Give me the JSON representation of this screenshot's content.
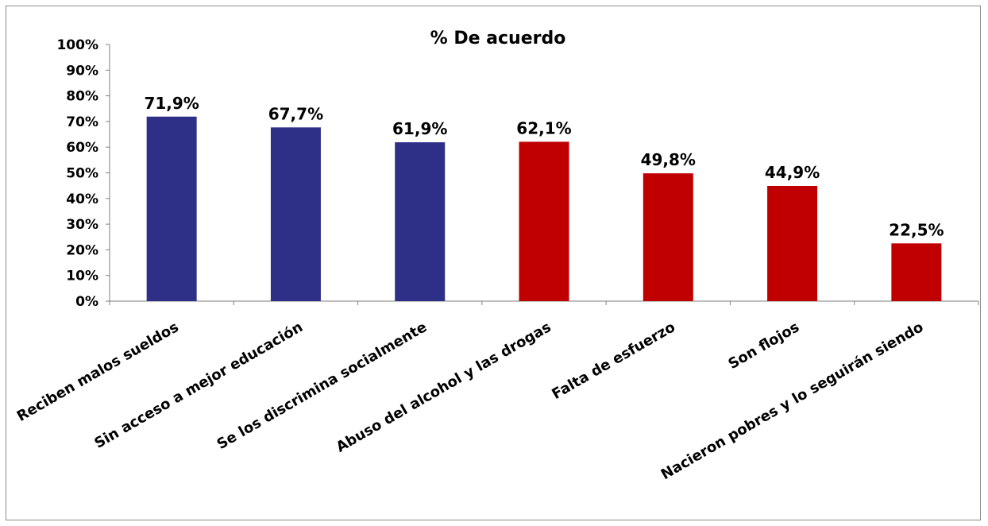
{
  "chart_data": {
    "type": "bar",
    "title": "% De acuerdo",
    "xlabel": "",
    "ylabel": "",
    "ylim": [
      0,
      100
    ],
    "yticks": [
      "0%",
      "10%",
      "20%",
      "30%",
      "40%",
      "50%",
      "60%",
      "70%",
      "80%",
      "90%",
      "100%"
    ],
    "categories": [
      "Reciben malos sueldos",
      "Sin acceso a mejor educación",
      "Se los discrimina  socialmente",
      "Abuso del alcohol y las drogas",
      "Falta de esfuerzo",
      "Son flojos",
      "Nacieron pobres y lo seguirán siendo"
    ],
    "values": [
      71.9,
      67.7,
      61.9,
      62.1,
      49.8,
      44.9,
      22.5
    ],
    "value_labels": [
      "71,9%",
      "67,7%",
      "61,9%",
      "62,1%",
      "49,8%",
      "44,9%",
      "22,5%"
    ],
    "bar_colors": [
      "#2e3087",
      "#2e3087",
      "#2e3087",
      "#c00000",
      "#c00000",
      "#c00000",
      "#c00000"
    ],
    "grid": false,
    "legend": "none"
  }
}
